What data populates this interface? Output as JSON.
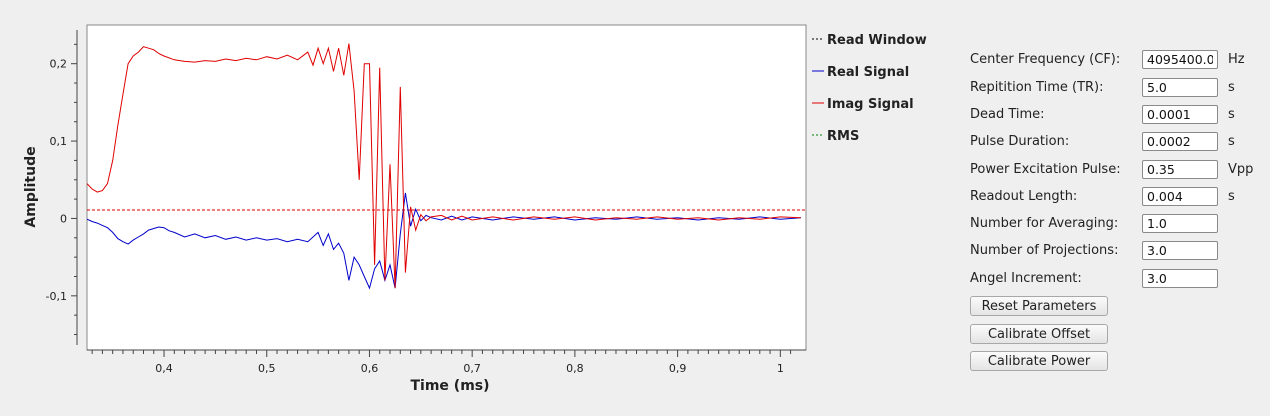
{
  "plot": {
    "ylabel": "Amplitude",
    "xlabel": "Time (ms)",
    "colors": {
      "read_window": "#000000",
      "real": "#0000cc",
      "imag": "#e00000",
      "rms": "#008000",
      "threshold": "#e00000"
    },
    "chart_data": {
      "type": "line",
      "title": "",
      "xlabel": "Time (ms)",
      "ylabel": "Amplitude",
      "xlim": [
        0.325,
        1.025
      ],
      "ylim": [
        -0.17,
        0.25
      ],
      "grid": false,
      "legend_position": "right",
      "x_ticks": [
        {
          "v": 0.4,
          "label": "0,4"
        },
        {
          "v": 0.5,
          "label": "0,5"
        },
        {
          "v": 0.6,
          "label": "0,6"
        },
        {
          "v": 0.7,
          "label": "0,7"
        },
        {
          "v": 0.8,
          "label": "0,8"
        },
        {
          "v": 0.9,
          "label": "0,9"
        },
        {
          "v": 1.0,
          "label": "1"
        }
      ],
      "y_ticks": [
        {
          "v": 0.2,
          "label": "0,2"
        },
        {
          "v": 0.1,
          "label": "0,1"
        },
        {
          "v": 0.0,
          "label": "0"
        },
        {
          "v": -0.1,
          "label": "-0,1"
        }
      ],
      "threshold_line": 0.011,
      "series": [
        {
          "name": "Read Window",
          "style": "dashed",
          "x": [],
          "y": []
        },
        {
          "name": "Real Signal",
          "style": "solid",
          "x": [
            0.325,
            0.33,
            0.335,
            0.34,
            0.345,
            0.35,
            0.355,
            0.36,
            0.365,
            0.37,
            0.375,
            0.38,
            0.385,
            0.39,
            0.395,
            0.4,
            0.405,
            0.41,
            0.42,
            0.43,
            0.44,
            0.45,
            0.46,
            0.47,
            0.48,
            0.49,
            0.5,
            0.51,
            0.52,
            0.53,
            0.54,
            0.55,
            0.555,
            0.56,
            0.565,
            0.57,
            0.575,
            0.58,
            0.585,
            0.59,
            0.595,
            0.6,
            0.605,
            0.61,
            0.615,
            0.62,
            0.625,
            0.63,
            0.635,
            0.64,
            0.645,
            0.65,
            0.655,
            0.66,
            0.67,
            0.68,
            0.69,
            0.7,
            0.72,
            0.74,
            0.76,
            0.78,
            0.8,
            0.82,
            0.84,
            0.86,
            0.88,
            0.9,
            0.92,
            0.94,
            0.96,
            0.98,
            1.0,
            1.02
          ],
          "y": [
            -0.001,
            -0.004,
            -0.006,
            -0.009,
            -0.012,
            -0.018,
            -0.026,
            -0.03,
            -0.033,
            -0.028,
            -0.024,
            -0.02,
            -0.015,
            -0.013,
            -0.011,
            -0.012,
            -0.016,
            -0.018,
            -0.024,
            -0.02,
            -0.025,
            -0.022,
            -0.027,
            -0.024,
            -0.028,
            -0.025,
            -0.028,
            -0.026,
            -0.03,
            -0.027,
            -0.03,
            -0.018,
            -0.035,
            -0.02,
            -0.04,
            -0.032,
            -0.045,
            -0.08,
            -0.05,
            -0.06,
            -0.075,
            -0.09,
            -0.065,
            -0.055,
            -0.08,
            -0.06,
            -0.09,
            -0.02,
            0.033,
            -0.01,
            0.012,
            -0.003,
            0.004,
            0.001,
            -0.002,
            0.003,
            -0.002,
            0.002,
            -0.002,
            0.002,
            -0.001,
            0.002,
            -0.002,
            0.001,
            -0.001,
            0.002,
            -0.001,
            0.001,
            -0.002,
            0.001,
            -0.001,
            0.002,
            -0.001,
            0.001
          ]
        },
        {
          "name": "Imag Signal",
          "style": "solid",
          "x": [
            0.325,
            0.33,
            0.335,
            0.34,
            0.345,
            0.35,
            0.355,
            0.36,
            0.365,
            0.37,
            0.375,
            0.38,
            0.385,
            0.39,
            0.395,
            0.4,
            0.41,
            0.42,
            0.43,
            0.44,
            0.45,
            0.46,
            0.47,
            0.48,
            0.49,
            0.5,
            0.51,
            0.52,
            0.53,
            0.54,
            0.545,
            0.55,
            0.555,
            0.56,
            0.565,
            0.57,
            0.575,
            0.58,
            0.585,
            0.59,
            0.595,
            0.6,
            0.605,
            0.61,
            0.615,
            0.62,
            0.625,
            0.63,
            0.635,
            0.64,
            0.645,
            0.65,
            0.655,
            0.66,
            0.67,
            0.68,
            0.69,
            0.7,
            0.72,
            0.74,
            0.76,
            0.78,
            0.8,
            0.82,
            0.84,
            0.86,
            0.88,
            0.9,
            0.92,
            0.94,
            0.96,
            0.98,
            1.0,
            1.02
          ],
          "y": [
            0.045,
            0.038,
            0.034,
            0.036,
            0.045,
            0.075,
            0.12,
            0.16,
            0.2,
            0.21,
            0.215,
            0.222,
            0.22,
            0.218,
            0.213,
            0.21,
            0.205,
            0.203,
            0.202,
            0.204,
            0.203,
            0.206,
            0.204,
            0.207,
            0.205,
            0.209,
            0.206,
            0.211,
            0.205,
            0.215,
            0.198,
            0.22,
            0.2,
            0.22,
            0.19,
            0.22,
            0.185,
            0.226,
            0.165,
            0.05,
            0.2,
            0.2,
            -0.06,
            0.195,
            -0.08,
            0.07,
            -0.09,
            0.17,
            -0.07,
            0.015,
            -0.015,
            0.005,
            -0.003,
            0.002,
            0.004,
            -0.002,
            0.003,
            -0.002,
            0.002,
            -0.002,
            0.002,
            -0.001,
            0.002,
            -0.002,
            0.001,
            -0.001,
            0.002,
            -0.001,
            0.001,
            -0.002,
            0.001,
            -0.001,
            0.002,
            0.001
          ]
        },
        {
          "name": "RMS",
          "style": "dashed",
          "x": [],
          "y": []
        }
      ]
    }
  },
  "params": {
    "fields": [
      {
        "label": "Center Frequency (CF):",
        "value": "4095400.0",
        "unit": "Hz"
      },
      {
        "label": "Repitition Time (TR):",
        "value": "5.0",
        "unit": "s"
      },
      {
        "label": "Dead Time:",
        "value": "0.0001",
        "unit": "s"
      },
      {
        "label": "Pulse Duration:",
        "value": "0.0002",
        "unit": "s"
      },
      {
        "label": "Power Excitation Pulse:",
        "value": "0.35",
        "unit": "Vpp"
      },
      {
        "label": "Readout Length:",
        "value": "0.004",
        "unit": "s"
      },
      {
        "label": "Number for Averaging:",
        "value": "1.0",
        "unit": ""
      },
      {
        "label": "Number of Projections:",
        "value": "3.0",
        "unit": ""
      },
      {
        "label": "Angel Increment:",
        "value": "3.0",
        "unit": ""
      }
    ],
    "buttons": {
      "reset": "Reset Parameters",
      "calibrate_offset": "Calibrate Offset",
      "calibrate_power": "Calibrate Power"
    }
  }
}
